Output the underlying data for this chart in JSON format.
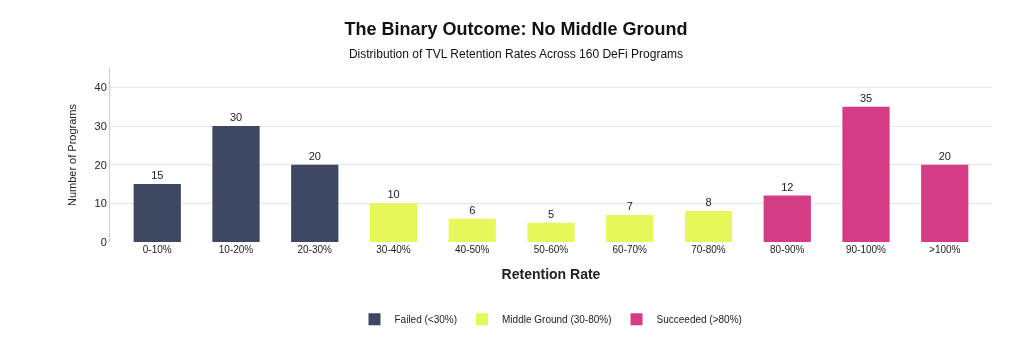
{
  "chart_data": {
    "type": "bar",
    "title": "The Binary Outcome: No Middle Ground",
    "subtitle": "Distribution of TVL Retention Rates Across 160 DeFi Programs",
    "xlabel": "Retention Rate",
    "ylabel": "Number of Programs",
    "categories": [
      "0-10%",
      "10-20%",
      "20-30%",
      "30-40%",
      "40-50%",
      "50-60%",
      "60-70%",
      "70-80%",
      "80-90%",
      "90-100%",
      ">100%"
    ],
    "series": [
      {
        "name": "Failed (<30%)",
        "color": "#3f4862",
        "values": [
          15,
          30,
          20,
          null,
          null,
          null,
          null,
          null,
          null,
          null,
          null
        ]
      },
      {
        "name": "Middle Ground (30-80%)",
        "color": "#e6f75c",
        "values": [
          null,
          null,
          null,
          10,
          6,
          5,
          7,
          8,
          null,
          null,
          null
        ]
      },
      {
        "name": "Succeeded (>80%)",
        "color": "#d43c86",
        "values": [
          null,
          null,
          null,
          null,
          null,
          null,
          null,
          null,
          12,
          35,
          20
        ]
      }
    ],
    "ylim": [
      0,
      45
    ],
    "yticks": [
      0,
      10,
      20,
      30,
      40
    ],
    "grid": "y",
    "legend": "bottom",
    "data_labels": true
  }
}
